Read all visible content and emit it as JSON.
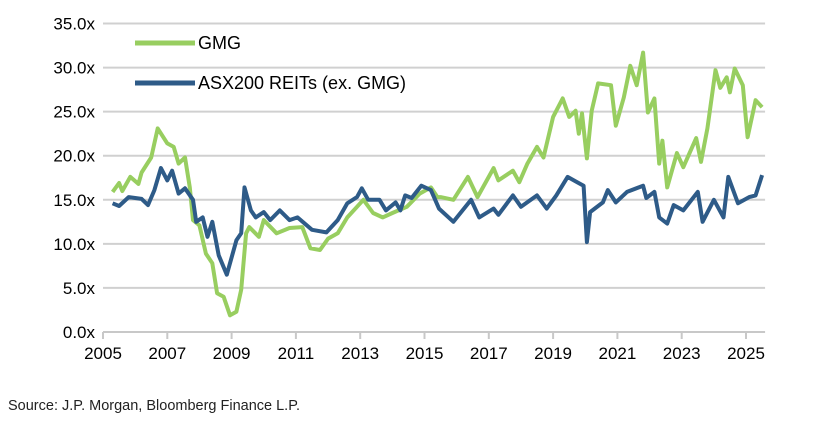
{
  "chart_data": {
    "type": "line",
    "title": "",
    "xlabel": "",
    "ylabel": "",
    "xlim": [
      2005,
      2025.5
    ],
    "ylim": [
      0,
      35
    ],
    "grid": true,
    "legend_position": "top-left",
    "y_ticks": [
      "0.0x",
      "5.0x",
      "10.0x",
      "15.0x",
      "20.0x",
      "25.0x",
      "30.0x",
      "35.0x"
    ],
    "y_tick_values": [
      0,
      5,
      10,
      15,
      20,
      25,
      30,
      35
    ],
    "x_ticks": [
      "2005",
      "2007",
      "2009",
      "2011",
      "2013",
      "2015",
      "2017",
      "2019",
      "2021",
      "2023",
      "2025"
    ],
    "x_tick_values": [
      2005,
      2007,
      2009,
      2011,
      2013,
      2015,
      2017,
      2019,
      2021,
      2023,
      2025
    ],
    "series": [
      {
        "name": "GMG",
        "color": "#98CE60",
        "x": [
          2005.3,
          2005.5,
          2005.6,
          2005.85,
          2006.1,
          2006.2,
          2006.5,
          2006.7,
          2007.0,
          2007.2,
          2007.35,
          2007.55,
          2007.7,
          2007.8,
          2008.0,
          2008.2,
          2008.4,
          2008.55,
          2008.75,
          2008.95,
          2009.15,
          2009.3,
          2009.45,
          2009.55,
          2009.85,
          2010.0,
          2010.4,
          2010.8,
          2011.2,
          2011.45,
          2011.75,
          2012.0,
          2012.3,
          2012.6,
          2012.9,
          2013.1,
          2013.4,
          2013.7,
          2014.0,
          2014.45,
          2014.85,
          2015.2,
          2015.4,
          2015.5,
          2015.9,
          2016.35,
          2016.65,
          2017.15,
          2017.3,
          2017.75,
          2017.95,
          2018.2,
          2018.5,
          2018.7,
          2019.0,
          2019.3,
          2019.5,
          2019.7,
          2019.8,
          2019.9,
          2020.05,
          2020.2,
          2020.4,
          2020.8,
          2020.95,
          2021.2,
          2021.4,
          2021.6,
          2021.8,
          2021.95,
          2022.15,
          2022.3,
          2022.4,
          2022.55,
          2022.85,
          2023.05,
          2023.45,
          2023.6,
          2023.8,
          2024.05,
          2024.2,
          2024.4,
          2024.5,
          2024.65,
          2024.9,
          2025.05,
          2025.3,
          2025.5
        ],
        "values": [
          15.9,
          16.9,
          16.0,
          17.6,
          16.8,
          18.1,
          19.8,
          23.1,
          21.4,
          21.0,
          19.1,
          19.8,
          16.4,
          12.7,
          12.1,
          8.9,
          7.8,
          4.4,
          4.0,
          1.9,
          2.3,
          4.8,
          11.2,
          11.9,
          10.8,
          12.7,
          11.2,
          11.8,
          11.9,
          9.5,
          9.3,
          10.6,
          11.2,
          13.0,
          14.2,
          15.0,
          13.5,
          13.0,
          13.5,
          14.2,
          15.7,
          16.4,
          15.3,
          15.3,
          15.0,
          17.6,
          15.3,
          18.6,
          17.2,
          18.3,
          17.0,
          19.1,
          21.0,
          19.8,
          24.4,
          26.5,
          24.4,
          25.1,
          22.5,
          24.8,
          19.7,
          25.1,
          28.2,
          28.0,
          23.4,
          26.6,
          30.2,
          28.0,
          31.7,
          24.9,
          26.5,
          19.1,
          21.7,
          16.4,
          20.3,
          18.7,
          22.0,
          19.3,
          23.1,
          29.7,
          27.7,
          28.9,
          27.2,
          29.9,
          28.0,
          22.1,
          26.3,
          25.5
        ]
      },
      {
        "name": "ASX200 REITs (ex. GMG)",
        "color": "#2E5B88",
        "x": [
          2005.3,
          2005.5,
          2005.8,
          2006.2,
          2006.4,
          2006.6,
          2006.8,
          2007.0,
          2007.15,
          2007.35,
          2007.55,
          2007.8,
          2007.9,
          2008.1,
          2008.25,
          2008.4,
          2008.6,
          2008.85,
          2009.15,
          2009.3,
          2009.4,
          2009.6,
          2009.75,
          2010.0,
          2010.2,
          2010.5,
          2010.8,
          2011.05,
          2011.5,
          2011.95,
          2012.3,
          2012.6,
          2012.9,
          2013.05,
          2013.25,
          2013.6,
          2013.8,
          2014.1,
          2014.25,
          2014.4,
          2014.6,
          2014.9,
          2015.2,
          2015.45,
          2015.9,
          2016.45,
          2016.7,
          2017.15,
          2017.3,
          2017.75,
          2018.0,
          2018.5,
          2018.8,
          2019.1,
          2019.45,
          2019.75,
          2019.95,
          2020.05,
          2020.15,
          2020.55,
          2020.7,
          2020.95,
          2021.3,
          2021.8,
          2021.9,
          2022.15,
          2022.3,
          2022.55,
          2022.75,
          2023.05,
          2023.5,
          2023.65,
          2024.0,
          2024.3,
          2024.45,
          2024.75,
          2025.1,
          2025.3,
          2025.5
        ],
        "values": [
          14.6,
          14.3,
          15.3,
          15.1,
          14.4,
          16.1,
          18.6,
          17.2,
          18.3,
          15.7,
          16.3,
          15.0,
          12.5,
          13.0,
          10.8,
          12.5,
          8.7,
          6.5,
          10.4,
          11.2,
          16.4,
          13.8,
          13.0,
          13.6,
          12.7,
          13.8,
          12.7,
          13.0,
          11.6,
          11.3,
          12.7,
          14.6,
          15.3,
          16.3,
          15.0,
          15.0,
          13.8,
          14.7,
          13.8,
          15.5,
          15.2,
          16.6,
          16.1,
          14.0,
          12.5,
          15.0,
          13.0,
          14.0,
          13.3,
          15.5,
          14.2,
          15.5,
          14.0,
          15.5,
          17.6,
          17.0,
          16.6,
          10.2,
          13.6,
          14.7,
          16.1,
          14.7,
          15.9,
          16.6,
          15.2,
          15.9,
          13.0,
          12.3,
          14.4,
          13.8,
          15.9,
          12.5,
          15.0,
          13.0,
          17.6,
          14.6,
          15.3,
          15.5,
          17.8
        ]
      }
    ],
    "source": "Source: J.P. Morgan, Bloomberg Finance L.P."
  }
}
